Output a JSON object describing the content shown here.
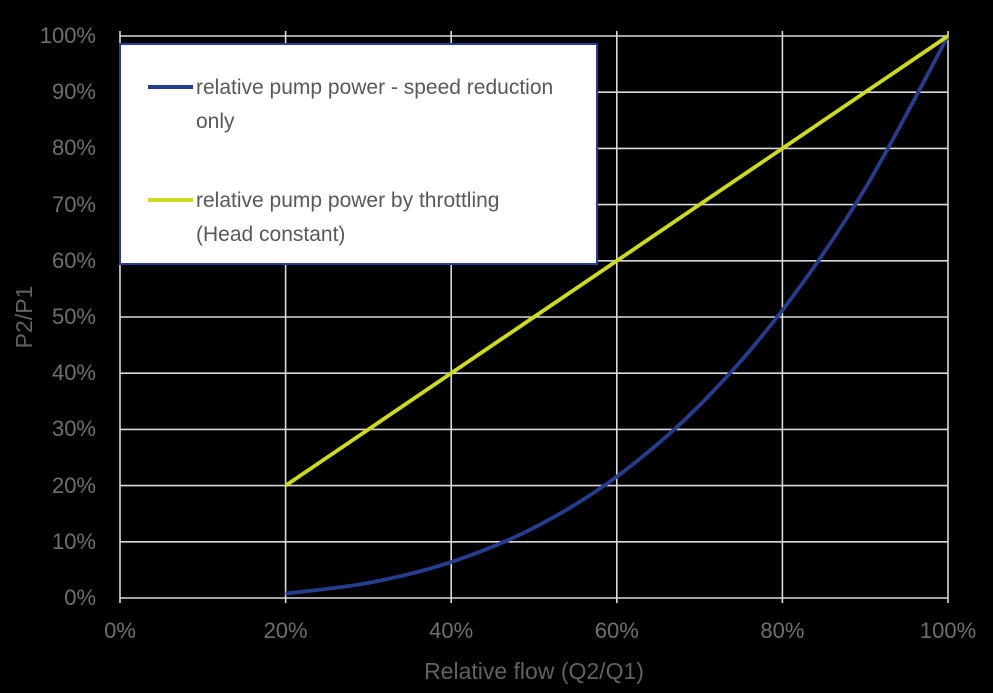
{
  "chart_data": {
    "type": "line",
    "title": "",
    "xlabel": "Relative flow (Q2/Q1)",
    "ylabel": "P2/P1",
    "xlim": [
      0,
      100
    ],
    "ylim": [
      0,
      100
    ],
    "x_ticks": [
      0,
      20,
      40,
      60,
      80,
      100
    ],
    "x_tick_labels": [
      "0%",
      "20%",
      "40%",
      "60%",
      "80%",
      "100%"
    ],
    "y_ticks": [
      0,
      10,
      20,
      30,
      40,
      50,
      60,
      70,
      80,
      90,
      100
    ],
    "y_tick_labels": [
      "0%",
      "10%",
      "20%",
      "30%",
      "40%",
      "50%",
      "60%",
      "70%",
      "80%",
      "90%",
      "100%"
    ],
    "grid": true,
    "legend_position": "top-left",
    "x": [
      20,
      30,
      40,
      50,
      60,
      70,
      80,
      90,
      100
    ],
    "series": [
      {
        "name": "relative pump power - speed reduction only",
        "color": "#263C8C",
        "smooth": true,
        "values": [
          0.8,
          2.7,
          6.4,
          12.5,
          21.6,
          34.3,
          51.2,
          72.9,
          100
        ]
      },
      {
        "name": "relative pump power by throttling (Head constant)",
        "color": "#CEDA20",
        "smooth": false,
        "values": [
          20,
          30,
          40,
          50,
          60,
          70,
          80,
          90,
          100
        ]
      }
    ]
  },
  "colors": {
    "background": "#000000",
    "gridline": "#D9D9D9",
    "tick_label": "#6F6F6F",
    "axis_title": "#616161",
    "legend_bg": "#FFFFFF",
    "legend_border": "#2A3F8F",
    "legend_text": "#595959"
  }
}
